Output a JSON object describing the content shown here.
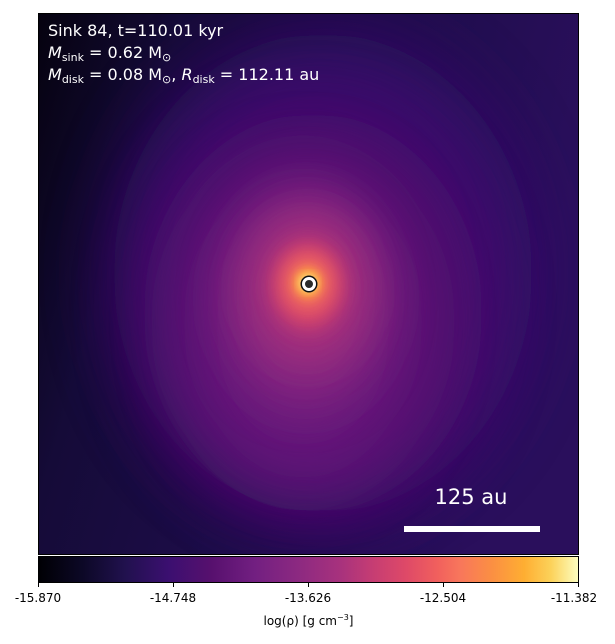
{
  "annotation": {
    "sink_line": "Sink 84, t=110.01 kyr",
    "msink_symbol": "M",
    "msink_sub": "sink",
    "msink_value": " = 0.62 M",
    "msink_unit_sub": "⊙",
    "mdisk_symbol": "M",
    "mdisk_sub": "disk",
    "mdisk_value": " = 0.08 M",
    "mdisk_unit_sub": "⊙",
    "rdisk_sep": ", ",
    "rdisk_symbol": "R",
    "rdisk_sub": "disk",
    "rdisk_value": " = 112.11 au"
  },
  "scalebar": {
    "label": "125 au"
  },
  "colorbar": {
    "colormap": "inferno",
    "ticks": [
      "-15.870",
      "-14.748",
      "-13.626",
      "-12.504",
      "-11.382"
    ],
    "label_text": "log(ρ) [g cm",
    "label_sup": "−3",
    "label_close": "]"
  },
  "colors": {
    "background_dark": "#0d0521",
    "sink_ring": "#ffffff",
    "core": "#fcfdbf"
  }
}
